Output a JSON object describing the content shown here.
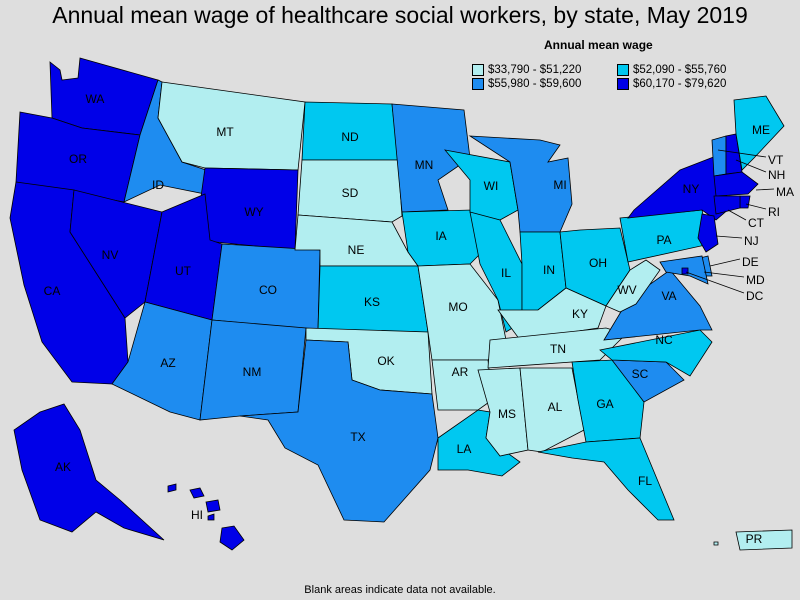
{
  "title": "Annual mean wage of healthcare social workers, by state, May 2019",
  "legend": {
    "title": "Annual mean wage",
    "items": [
      {
        "label": "$33,790 - $51,220",
        "color": "#b2eef0"
      },
      {
        "label": "$52,090 - $55,760",
        "color": "#00c8f0"
      },
      {
        "label": "$55,980 - $59,600",
        "color": "#1e8cf0"
      },
      {
        "label": "$60,170 - $79,620",
        "color": "#0000e8"
      }
    ]
  },
  "footnote": "Blank areas indicate data not available.",
  "states": [
    {
      "abbr": "WA",
      "tier": 4
    },
    {
      "abbr": "OR",
      "tier": 4
    },
    {
      "abbr": "CA",
      "tier": 4
    },
    {
      "abbr": "NV",
      "tier": 4
    },
    {
      "abbr": "ID",
      "tier": 3
    },
    {
      "abbr": "MT",
      "tier": 1
    },
    {
      "abbr": "WY",
      "tier": 4
    },
    {
      "abbr": "UT",
      "tier": 4
    },
    {
      "abbr": "AZ",
      "tier": 3
    },
    {
      "abbr": "CO",
      "tier": 3
    },
    {
      "abbr": "NM",
      "tier": 3
    },
    {
      "abbr": "ND",
      "tier": 2
    },
    {
      "abbr": "SD",
      "tier": 1
    },
    {
      "abbr": "NE",
      "tier": 1
    },
    {
      "abbr": "KS",
      "tier": 2
    },
    {
      "abbr": "OK",
      "tier": 1
    },
    {
      "abbr": "TX",
      "tier": 3
    },
    {
      "abbr": "MN",
      "tier": 3
    },
    {
      "abbr": "IA",
      "tier": 2
    },
    {
      "abbr": "MO",
      "tier": 1
    },
    {
      "abbr": "AR",
      "tier": 1
    },
    {
      "abbr": "LA",
      "tier": 2
    },
    {
      "abbr": "WI",
      "tier": 2
    },
    {
      "abbr": "IL",
      "tier": 2
    },
    {
      "abbr": "MI",
      "tier": 3
    },
    {
      "abbr": "IN",
      "tier": 2
    },
    {
      "abbr": "OH",
      "tier": 2
    },
    {
      "abbr": "KY",
      "tier": 1
    },
    {
      "abbr": "TN",
      "tier": 1
    },
    {
      "abbr": "MS",
      "tier": 1
    },
    {
      "abbr": "AL",
      "tier": 1
    },
    {
      "abbr": "GA",
      "tier": 2
    },
    {
      "abbr": "FL",
      "tier": 2
    },
    {
      "abbr": "SC",
      "tier": 3
    },
    {
      "abbr": "NC",
      "tier": 2
    },
    {
      "abbr": "VA",
      "tier": 3
    },
    {
      "abbr": "WV",
      "tier": 1
    },
    {
      "abbr": "PA",
      "tier": 2
    },
    {
      "abbr": "NY",
      "tier": 4
    },
    {
      "abbr": "VT",
      "tier": 3
    },
    {
      "abbr": "NH",
      "tier": 4
    },
    {
      "abbr": "ME",
      "tier": 2
    },
    {
      "abbr": "MA",
      "tier": 4
    },
    {
      "abbr": "RI",
      "tier": 4
    },
    {
      "abbr": "CT",
      "tier": 4
    },
    {
      "abbr": "NJ",
      "tier": 4
    },
    {
      "abbr": "DE",
      "tier": 3
    },
    {
      "abbr": "MD",
      "tier": 3
    },
    {
      "abbr": "DC",
      "tier": 4
    },
    {
      "abbr": "AK",
      "tier": 4
    },
    {
      "abbr": "HI",
      "tier": 4
    },
    {
      "abbr": "PR",
      "tier": 1
    }
  ]
}
